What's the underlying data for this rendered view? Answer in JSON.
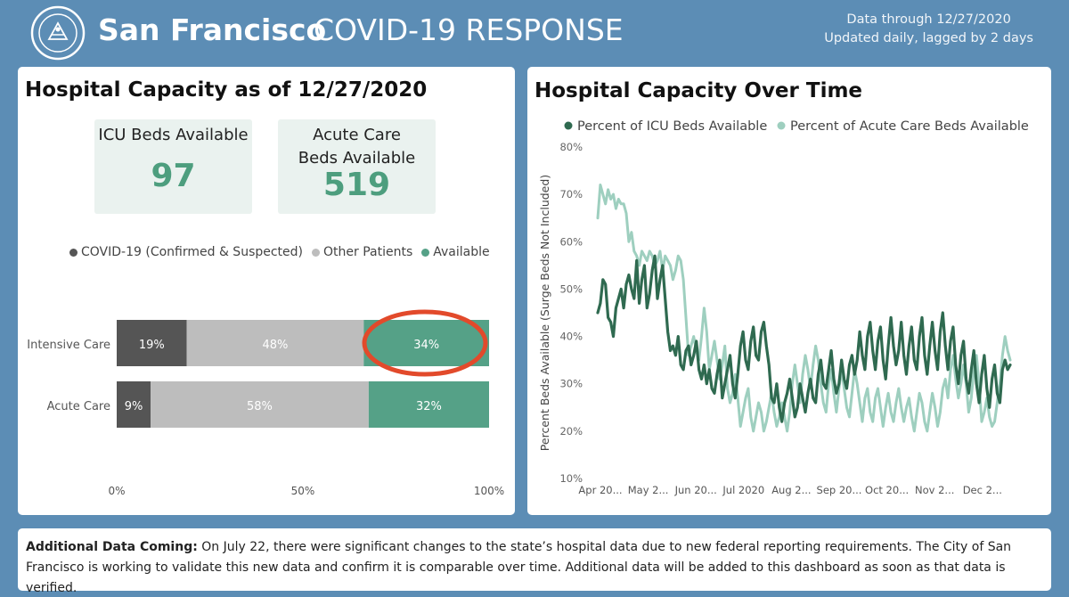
{
  "header": {
    "title_main": "San Francisco",
    "title_sub": "COVID-19 RESPONSE",
    "data_through": "Data through 12/27/2020",
    "update_note": "Updated daily, lagged by 2 days"
  },
  "left_panel": {
    "title": "Hospital Capacity as of 12/27/2020",
    "kpis": [
      {
        "label": "ICU Beds Available",
        "value": "97"
      },
      {
        "label": "Acute Care Beds Available",
        "value": "519"
      }
    ]
  },
  "right_panel": {
    "title": "Hospital Capacity Over Time"
  },
  "note": {
    "heading": "Additional Data Coming:",
    "body": " On July 22, there were significant changes to the state’s hospital data due to new federal reporting requirements. The City of San Francisco is working to validate this new data and confirm it is comparable over time. Additional data will be added to this dashboard as soon as that data is verified."
  },
  "colors": {
    "covid": "#555555",
    "other": "#bdbdbd",
    "available": "#55a187",
    "icu_line": "#2f6a50",
    "acute_line": "#9ecfbf",
    "highlight_circle": "#e24a2b"
  },
  "chart_data": [
    {
      "type": "bar",
      "stacked": true,
      "orientation": "horizontal",
      "categories": [
        "Intensive Care",
        "Acute Care"
      ],
      "series": [
        {
          "name": "COVID-19 (Confirmed & Suspected)",
          "values": [
            19,
            9
          ],
          "labels": [
            "19%",
            "9%"
          ]
        },
        {
          "name": "Other Patients",
          "values": [
            48,
            58
          ],
          "labels": [
            "48%",
            "58%"
          ]
        },
        {
          "name": "Available",
          "values": [
            34,
            32
          ],
          "labels": [
            "34%",
            "32%"
          ]
        }
      ],
      "xlim": [
        0,
        100
      ],
      "xticks": [
        "0%",
        "50%",
        "100%"
      ],
      "legend": "top"
    },
    {
      "type": "line",
      "ylabel": "Percent Beds Available (Surge Beds Not Included)",
      "ylim": [
        10,
        80
      ],
      "yticks": [
        "10%",
        "20%",
        "30%",
        "40%",
        "50%",
        "60%",
        "70%",
        "80%"
      ],
      "xticks": [
        "Apr 20...",
        "May 2...",
        "Jun 20...",
        "Jul 2020",
        "Aug 2...",
        "Sep 20...",
        "Oct 20...",
        "Nov 2...",
        "Dec 2..."
      ],
      "legend": "top",
      "series": [
        {
          "name": "Percent of ICU Beds Available",
          "values": [
            45,
            47,
            52,
            51,
            44,
            43,
            40,
            46,
            48,
            50,
            46,
            51,
            53,
            50,
            48,
            56,
            47,
            52,
            55,
            46,
            49,
            54,
            57,
            48,
            52,
            55,
            48,
            41,
            37,
            38,
            36,
            40,
            34,
            33,
            37,
            38,
            34,
            36,
            39,
            33,
            31,
            34,
            30,
            33,
            29,
            28,
            32,
            35,
            27,
            30,
            33,
            36,
            30,
            27,
            32,
            38,
            41,
            35,
            33,
            39,
            42,
            36,
            35,
            41,
            43,
            38,
            34,
            27,
            26,
            30,
            25,
            22,
            26,
            28,
            31,
            27,
            23,
            25,
            30,
            27,
            24,
            28,
            31,
            27,
            26,
            32,
            35,
            30,
            29,
            33,
            37,
            31,
            28,
            30,
            35,
            31,
            29,
            34,
            36,
            32,
            35,
            41,
            36,
            33,
            40,
            43,
            37,
            33,
            39,
            42,
            35,
            31,
            38,
            44,
            38,
            34,
            37,
            43,
            36,
            32,
            38,
            42,
            35,
            33,
            40,
            44,
            36,
            32,
            38,
            43,
            37,
            33,
            41,
            45,
            38,
            33,
            39,
            42,
            34,
            30,
            36,
            39,
            31,
            28,
            33,
            37,
            30,
            26,
            32,
            36,
            29,
            25,
            31,
            34,
            28,
            26,
            33,
            35,
            33,
            34
          ]
        },
        {
          "name": "Percent of Acute Care Beds Available",
          "values": [
            65,
            72,
            70,
            68,
            71,
            69,
            70,
            67,
            69,
            68,
            68,
            66,
            60,
            62,
            58,
            57,
            55,
            58,
            57,
            56,
            58,
            57,
            55,
            56,
            58,
            54,
            57,
            56,
            55,
            52,
            54,
            57,
            56,
            52,
            44,
            36,
            38,
            40,
            37,
            35,
            40,
            46,
            41,
            33,
            36,
            39,
            35,
            31,
            34,
            38,
            29,
            26,
            28,
            32,
            27,
            21,
            24,
            27,
            29,
            23,
            20,
            23,
            26,
            24,
            20,
            22,
            25,
            28,
            24,
            21,
            23,
            26,
            23,
            20,
            24,
            30,
            34,
            30,
            26,
            32,
            36,
            33,
            29,
            34,
            38,
            35,
            30,
            26,
            24,
            30,
            33,
            28,
            24,
            29,
            33,
            29,
            25,
            23,
            28,
            33,
            30,
            26,
            22,
            27,
            29,
            24,
            22,
            27,
            29,
            25,
            21,
            25,
            28,
            24,
            22,
            26,
            29,
            25,
            22,
            25,
            27,
            23,
            20,
            24,
            28,
            26,
            22,
            20,
            24,
            28,
            25,
            21,
            24,
            29,
            31,
            27,
            33,
            36,
            31,
            27,
            30,
            34,
            30,
            24,
            27,
            33,
            36,
            30,
            22,
            24,
            27,
            23,
            21,
            22,
            26,
            30,
            36,
            40,
            37,
            35
          ]
        }
      ]
    }
  ]
}
